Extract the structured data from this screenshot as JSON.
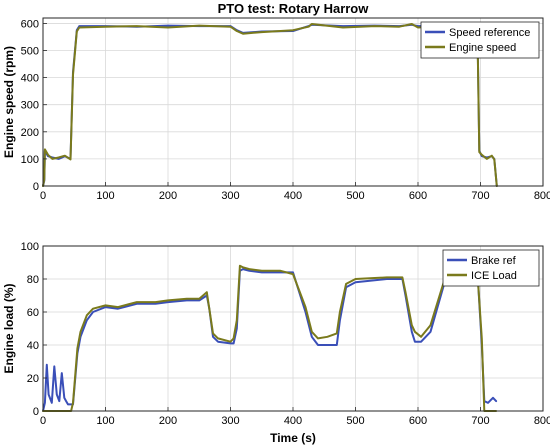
{
  "colors": {
    "background": "#ffffff",
    "axis": "#262626",
    "grid": "#d9d9d9",
    "series_blue": "#3a4fb8",
    "series_olive": "#7a7a1c",
    "series_brown": "#b06a12"
  },
  "chart_data": [
    {
      "type": "line",
      "title": "PTO test: Rotary Harrow",
      "xlabel": "",
      "ylabel": "Engine speed (rpm)",
      "xlim": [
        0,
        800
      ],
      "ylim": [
        0,
        620
      ],
      "xticks": [
        0,
        100,
        200,
        300,
        400,
        500,
        600,
        700,
        800
      ],
      "yticks": [
        0,
        100,
        200,
        300,
        400,
        500,
        600
      ],
      "grid": true,
      "legend_position": "top-right",
      "series": [
        {
          "name": "Speed reference",
          "color": "#3a4fb8",
          "x": [
            0,
            2,
            3,
            8,
            15,
            25,
            35,
            44,
            48,
            54,
            58,
            100,
            150,
            200,
            250,
            300,
            310,
            320,
            350,
            400,
            425,
            430,
            480,
            530,
            570,
            590,
            600,
            650,
            670,
            685,
            695,
            698,
            702,
            710,
            718,
            722,
            726
          ],
          "y": [
            0,
            20,
            130,
            110,
            105,
            100,
            110,
            100,
            420,
            575,
            590,
            590,
            588,
            592,
            590,
            590,
            575,
            565,
            570,
            572,
            590,
            595,
            590,
            592,
            590,
            595,
            590,
            590,
            590,
            590,
            590,
            130,
            110,
            105,
            110,
            100,
            0
          ]
        },
        {
          "name": "Engine speed",
          "color": "#7a7a1c",
          "x": [
            0,
            2,
            3,
            8,
            15,
            25,
            35,
            44,
            48,
            54,
            58,
            100,
            150,
            200,
            250,
            300,
            310,
            320,
            350,
            400,
            425,
            430,
            480,
            530,
            570,
            590,
            600,
            650,
            670,
            685,
            695,
            698,
            702,
            710,
            718,
            722,
            726
          ],
          "y": [
            0,
            25,
            135,
            115,
            100,
            105,
            112,
            98,
            410,
            570,
            585,
            588,
            590,
            585,
            592,
            588,
            572,
            562,
            568,
            575,
            588,
            598,
            585,
            590,
            588,
            598,
            585,
            592,
            588,
            592,
            588,
            125,
            115,
            100,
            112,
            98,
            0
          ]
        }
      ]
    },
    {
      "type": "line",
      "title": "",
      "xlabel": "Time (s)",
      "ylabel": "Engine load (%)",
      "xlim": [
        0,
        800
      ],
      "ylim": [
        0,
        100
      ],
      "xticks": [
        0,
        100,
        200,
        300,
        400,
        500,
        600,
        700,
        800
      ],
      "yticks": [
        0,
        20,
        40,
        60,
        80,
        100
      ],
      "grid": true,
      "legend_position": "top-right",
      "series": [
        {
          "name": "Brake ref",
          "color": "#3a4fb8",
          "x": [
            0,
            3,
            6,
            9,
            14,
            18,
            22,
            26,
            30,
            34,
            37,
            40,
            45,
            48,
            55,
            60,
            70,
            80,
            100,
            120,
            150,
            180,
            200,
            230,
            250,
            262,
            266,
            272,
            280,
            300,
            305,
            310,
            315,
            320,
            330,
            350,
            380,
            400,
            420,
            430,
            440,
            455,
            470,
            475,
            485,
            500,
            550,
            575,
            580,
            590,
            595,
            605,
            620,
            650,
            665,
            675,
            685,
            695,
            702,
            706,
            712,
            720,
            725
          ],
          "y": [
            0,
            5,
            28,
            10,
            5,
            27,
            10,
            6,
            23,
            8,
            6,
            4,
            4,
            4,
            35,
            45,
            55,
            60,
            63,
            62,
            65,
            65,
            66,
            67,
            67,
            70,
            62,
            45,
            42,
            41,
            41,
            50,
            85,
            86,
            85,
            84,
            84,
            84,
            60,
            45,
            40,
            40,
            40,
            55,
            75,
            78,
            80,
            80,
            70,
            48,
            42,
            42,
            48,
            88,
            88,
            87,
            87,
            85,
            40,
            6,
            5,
            8,
            6
          ]
        },
        {
          "name": "ICE Load",
          "color": "#7a7a1c",
          "x": [
            0,
            5,
            15,
            25,
            35,
            45,
            48,
            55,
            60,
            70,
            80,
            100,
            120,
            150,
            180,
            200,
            230,
            250,
            262,
            266,
            272,
            280,
            300,
            305,
            310,
            315,
            320,
            330,
            350,
            380,
            400,
            420,
            430,
            440,
            455,
            470,
            475,
            485,
            500,
            550,
            575,
            580,
            590,
            595,
            605,
            620,
            650,
            665,
            675,
            685,
            695,
            702,
            706,
            712,
            720,
            725
          ],
          "y": [
            0,
            0,
            0,
            0,
            0,
            0,
            5,
            38,
            48,
            58,
            62,
            64,
            63,
            66,
            66,
            67,
            68,
            68,
            72,
            62,
            47,
            44,
            42,
            44,
            55,
            88,
            87,
            86,
            85,
            85,
            83,
            63,
            48,
            44,
            45,
            47,
            60,
            77,
            80,
            81,
            81,
            72,
            52,
            48,
            45,
            52,
            89,
            88,
            88,
            86,
            84,
            44,
            0,
            0,
            0,
            0
          ]
        }
      ]
    }
  ]
}
